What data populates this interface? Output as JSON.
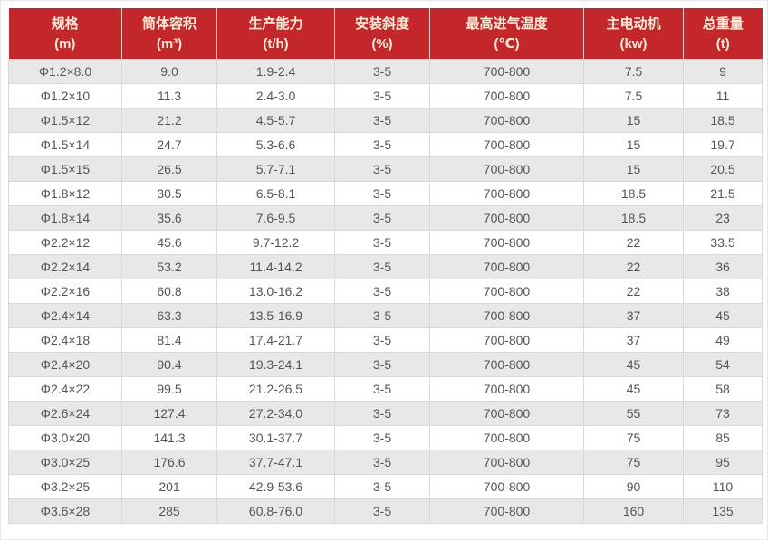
{
  "colors": {
    "header_bg": "#c3272b",
    "header_text": "#f8ecd9",
    "stripe_bg": "#e8e8e8",
    "row_bg": "#ffffff",
    "border": "#d9d9d9",
    "text": "#555555"
  },
  "chart_data": {
    "type": "table",
    "columns": [
      {
        "name": "规格",
        "unit": "(m)"
      },
      {
        "name": "筒体容积",
        "unit": "(m³)"
      },
      {
        "name": "生产能力",
        "unit": "(t/h)"
      },
      {
        "name": "安装斜度",
        "unit": "(%)"
      },
      {
        "name": "最高进气温度",
        "unit": "(℃)"
      },
      {
        "name": "主电动机",
        "unit": "(kw)"
      },
      {
        "name": "总重量",
        "unit": "(t)"
      }
    ],
    "rows": [
      [
        "Φ1.2×8.0",
        "9.0",
        "1.9-2.4",
        "3-5",
        "700-800",
        "7.5",
        "9"
      ],
      [
        "Φ1.2×10",
        "11.3",
        "2.4-3.0",
        "3-5",
        "700-800",
        "7.5",
        "11"
      ],
      [
        "Φ1.5×12",
        "21.2",
        "4.5-5.7",
        "3-5",
        "700-800",
        "15",
        "18.5"
      ],
      [
        "Φ1.5×14",
        "24.7",
        "5.3-6.6",
        "3-5",
        "700-800",
        "15",
        "19.7"
      ],
      [
        "Φ1.5×15",
        "26.5",
        "5.7-7.1",
        "3-5",
        "700-800",
        "15",
        "20.5"
      ],
      [
        "Φ1.8×12",
        "30.5",
        "6.5-8.1",
        "3-5",
        "700-800",
        "18.5",
        "21.5"
      ],
      [
        "Φ1.8×14",
        "35.6",
        "7.6-9.5",
        "3-5",
        "700-800",
        "18.5",
        "23"
      ],
      [
        "Φ2.2×12",
        "45.6",
        "9.7-12.2",
        "3-5",
        "700-800",
        "22",
        "33.5"
      ],
      [
        "Φ2.2×14",
        "53.2",
        "11.4-14.2",
        "3-5",
        "700-800",
        "22",
        "36"
      ],
      [
        "Φ2.2×16",
        "60.8",
        "13.0-16.2",
        "3-5",
        "700-800",
        "22",
        "38"
      ],
      [
        "Φ2.4×14",
        "63.3",
        "13.5-16.9",
        "3-5",
        "700-800",
        "37",
        "45"
      ],
      [
        "Φ2.4×18",
        "81.4",
        "17.4-21.7",
        "3-5",
        "700-800",
        "37",
        "49"
      ],
      [
        "Φ2.4×20",
        "90.4",
        "19.3-24.1",
        "3-5",
        "700-800",
        "45",
        "54"
      ],
      [
        "Φ2.4×22",
        "99.5",
        "21.2-26.5",
        "3-5",
        "700-800",
        "45",
        "58"
      ],
      [
        "Φ2.6×24",
        "127.4",
        "27.2-34.0",
        "3-5",
        "700-800",
        "55",
        "73"
      ],
      [
        "Φ3.0×20",
        "141.3",
        "30.1-37.7",
        "3-5",
        "700-800",
        "75",
        "85"
      ],
      [
        "Φ3.0×25",
        "176.6",
        "37.7-47.1",
        "3-5",
        "700-800",
        "75",
        "95"
      ],
      [
        "Φ3.2×25",
        "201",
        "42.9-53.6",
        "3-5",
        "700-800",
        "90",
        "110"
      ],
      [
        "Φ3.6×28",
        "285",
        "60.8-76.0",
        "3-5",
        "700-800",
        "160",
        "135"
      ]
    ]
  }
}
